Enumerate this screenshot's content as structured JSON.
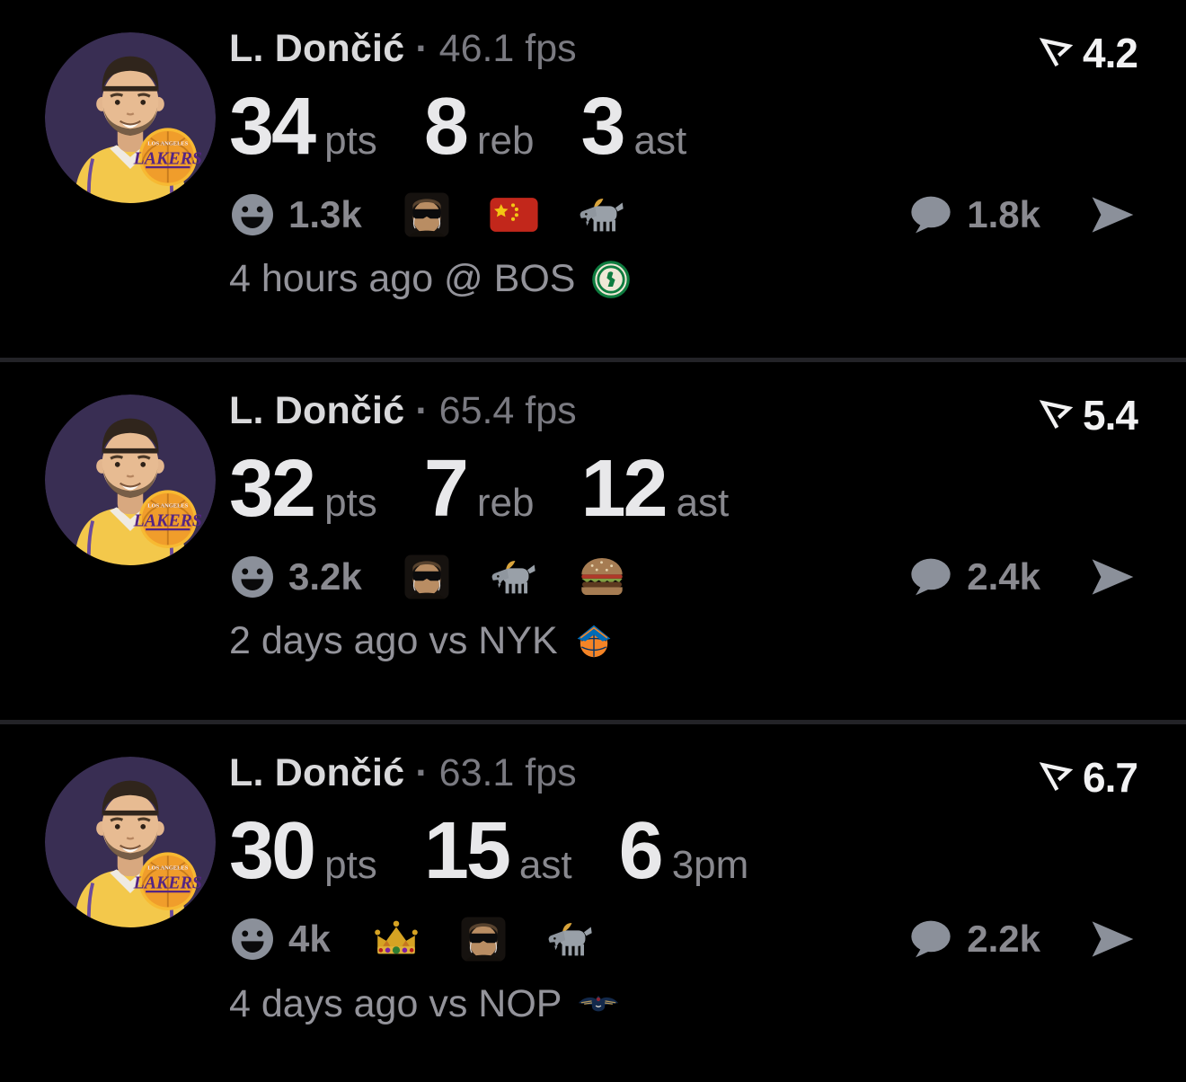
{
  "theme": {
    "background": "#000000",
    "divider": "#232327",
    "text_primary": "#d9d9db",
    "text_secondary": "#7a7a81",
    "stat_value_color": "#e8e8ea",
    "stat_label_color": "#88888e",
    "count_color": "#8a8a90",
    "icon_gray": "#8b909a",
    "score_color": "#f2f2f3",
    "avatar_background": "#392e53",
    "lakers_gold": "#f7b932",
    "lakers_purple": "#552583"
  },
  "avatar": {
    "player": "Luka Dončić",
    "badge_subtext": "LOS ANGELES",
    "badge_text": "LAKERS"
  },
  "cards": [
    {
      "player": "L. Dončić",
      "dot": "·",
      "fps": "46.1 fps",
      "score": "4.2",
      "stats": [
        {
          "value": "34",
          "label": "pts"
        },
        {
          "value": "8",
          "label": "reb"
        },
        {
          "value": "3",
          "label": "ast"
        }
      ],
      "reaction_count": "1.3k",
      "reaction_emojis": [
        "sunglasses-guy",
        "china-flag",
        "goat"
      ],
      "comment_count": "1.8k",
      "timestamp": "4 hours ago @ BOS",
      "opponent_logo": "celtics-logo"
    },
    {
      "player": "L. Dončić",
      "dot": "·",
      "fps": "65.4 fps",
      "score": "5.4",
      "stats": [
        {
          "value": "32",
          "label": "pts"
        },
        {
          "value": "7",
          "label": "reb"
        },
        {
          "value": "12",
          "label": "ast"
        }
      ],
      "reaction_count": "3.2k",
      "reaction_emojis": [
        "sunglasses-guy",
        "goat",
        "burger"
      ],
      "comment_count": "2.4k",
      "timestamp": "2 days ago vs NYK",
      "opponent_logo": "knicks-logo"
    },
    {
      "player": "L. Dončić",
      "dot": "·",
      "fps": "63.1 fps",
      "score": "6.7",
      "stats": [
        {
          "value": "30",
          "label": "pts"
        },
        {
          "value": "15",
          "label": "ast"
        },
        {
          "value": "6",
          "label": "3pm"
        }
      ],
      "reaction_count": "4k",
      "reaction_emojis": [
        "crown",
        "sunglasses-guy",
        "goat"
      ],
      "comment_count": "2.2k",
      "timestamp": "4 days ago vs NOP",
      "opponent_logo": "pelicans-logo"
    }
  ]
}
